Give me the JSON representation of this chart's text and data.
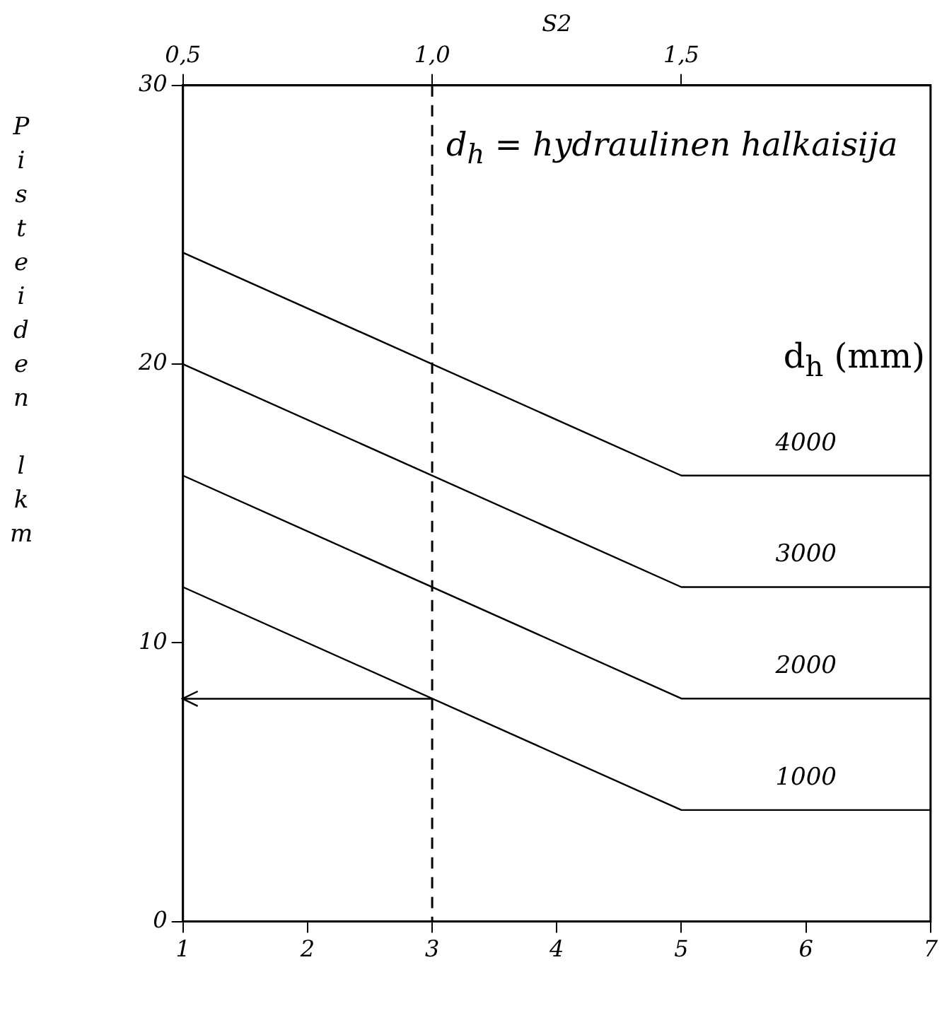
{
  "chart_data": {
    "type": "line",
    "xlabel": null,
    "ylabel": "Pisteiden lkm",
    "x2label": "S2",
    "legend_title": "d$_{h}$ (mm)",
    "annotations": [
      "d$_{h}$ = hydraulinen halkaisija"
    ],
    "xlim": [
      1,
      7
    ],
    "xticks": [
      1,
      2,
      3,
      4,
      5,
      6,
      7
    ],
    "x2lim": [
      0.5,
      2.0
    ],
    "x2ticks": [
      {
        "value": 0.5,
        "label": "0,5"
      },
      {
        "value": 1.0,
        "label": "1,0"
      },
      {
        "value": 1.5,
        "label": "1,5"
      }
    ],
    "ylim": [
      0,
      30
    ],
    "yticks": [
      0,
      10,
      20,
      30
    ],
    "grid": false,
    "legend": false,
    "marker": "none",
    "line_style": "solid",
    "ref_lines": [
      {
        "axis": "x",
        "value": 3,
        "label": null,
        "color": "#000000",
        "line_style": "dashed"
      }
    ],
    "series": [
      {
        "name": "4000",
        "color": "#000000",
        "x": [
          1,
          5,
          7
        ],
        "values": [
          24,
          16,
          16
        ]
      },
      {
        "name": "3000",
        "color": "#000000",
        "x": [
          1,
          5,
          7
        ],
        "values": [
          20,
          12,
          12
        ]
      },
      {
        "name": "2000",
        "color": "#000000",
        "x": [
          1,
          5,
          7
        ],
        "values": [
          16,
          8,
          8
        ]
      },
      {
        "name": "1000",
        "color": "#000000",
        "x": [
          1,
          5,
          7
        ],
        "values": [
          12,
          4,
          4
        ]
      },
      {
        "color": "#000000",
        "x": [
          3,
          1
        ],
        "values": [
          8,
          8
        ]
      }
    ]
  }
}
